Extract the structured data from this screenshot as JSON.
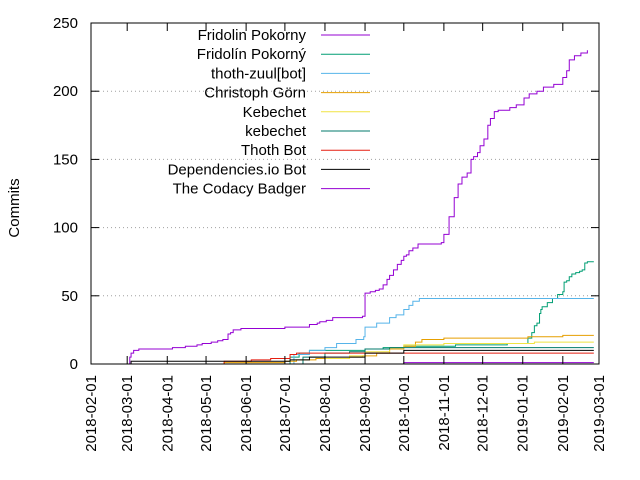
{
  "chart_data": {
    "type": "line",
    "ylabel": "Commits",
    "xlabel": "",
    "ylim": [
      0,
      250
    ],
    "xlim": [
      "2018-02-01",
      "2019-03-01"
    ],
    "yticks": [
      0,
      50,
      100,
      150,
      200,
      250
    ],
    "xticks": [
      "2018-02-01",
      "2018-03-01",
      "2018-04-01",
      "2018-05-01",
      "2018-06-01",
      "2018-07-01",
      "2018-08-01",
      "2018-09-01",
      "2018-10-01",
      "2018-11-01",
      "2018-12-01",
      "2019-01-01",
      "2019-02-01",
      "2019-03-01"
    ],
    "grid": "horizontal-dotted",
    "legend_position": "top-left",
    "step": true,
    "series": [
      {
        "name": "Fridolin Pokorny",
        "color": "#9400d3",
        "points": [
          [
            "2018-03-03",
            0
          ],
          [
            "2018-03-03",
            5
          ],
          [
            "2018-03-04",
            8
          ],
          [
            "2018-03-06",
            10
          ],
          [
            "2018-03-10",
            11
          ],
          [
            "2018-03-20",
            11
          ],
          [
            "2018-04-05",
            12
          ],
          [
            "2018-04-15",
            13
          ],
          [
            "2018-04-24",
            14
          ],
          [
            "2018-04-28",
            15
          ],
          [
            "2018-05-05",
            16
          ],
          [
            "2018-05-10",
            17
          ],
          [
            "2018-05-14",
            18
          ],
          [
            "2018-05-18",
            22
          ],
          [
            "2018-05-20",
            23
          ],
          [
            "2018-05-22",
            25
          ],
          [
            "2018-05-28",
            26
          ],
          [
            "2018-06-15",
            26
          ],
          [
            "2018-07-01",
            27
          ],
          [
            "2018-07-10",
            27
          ],
          [
            "2018-07-20",
            29
          ],
          [
            "2018-07-26",
            30
          ],
          [
            "2018-07-28",
            31
          ],
          [
            "2018-08-02",
            32
          ],
          [
            "2018-08-07",
            34
          ],
          [
            "2018-08-15",
            34
          ],
          [
            "2018-08-30",
            35
          ],
          [
            "2018-09-01",
            52
          ],
          [
            "2018-09-05",
            53
          ],
          [
            "2018-09-09",
            54
          ],
          [
            "2018-09-12",
            55
          ],
          [
            "2018-09-15",
            58
          ],
          [
            "2018-09-18",
            62
          ],
          [
            "2018-09-20",
            65
          ],
          [
            "2018-09-23",
            69
          ],
          [
            "2018-09-26",
            73
          ],
          [
            "2018-09-29",
            76
          ],
          [
            "2018-10-01",
            79
          ],
          [
            "2018-10-03",
            80
          ],
          [
            "2018-10-05",
            83
          ],
          [
            "2018-10-08",
            85
          ],
          [
            "2018-10-12",
            88
          ],
          [
            "2018-10-20",
            88
          ],
          [
            "2018-10-30",
            89
          ],
          [
            "2018-11-01",
            95
          ],
          [
            "2018-11-05",
            108
          ],
          [
            "2018-11-09",
            122
          ],
          [
            "2018-11-12",
            132
          ],
          [
            "2018-11-15",
            137
          ],
          [
            "2018-11-19",
            140
          ],
          [
            "2018-11-22",
            150
          ],
          [
            "2018-11-24",
            152
          ],
          [
            "2018-11-27",
            155
          ],
          [
            "2018-11-29",
            160
          ],
          [
            "2018-12-02",
            165
          ],
          [
            "2018-12-05",
            175
          ],
          [
            "2018-12-07",
            180
          ],
          [
            "2018-12-10",
            185
          ],
          [
            "2018-12-13",
            186
          ],
          [
            "2018-12-22",
            188
          ],
          [
            "2018-12-27",
            190
          ],
          [
            "2019-01-02",
            195
          ],
          [
            "2019-01-06",
            198
          ],
          [
            "2019-01-12",
            200
          ],
          [
            "2019-01-17",
            203
          ],
          [
            "2019-01-25",
            205
          ],
          [
            "2019-02-01",
            210
          ],
          [
            "2019-02-04",
            215
          ],
          [
            "2019-02-06",
            223
          ],
          [
            "2019-02-10",
            226
          ],
          [
            "2019-02-15",
            228
          ],
          [
            "2019-02-20",
            230
          ]
        ]
      },
      {
        "name": "Fridolín Pokorný",
        "color": "#009e73",
        "points": [
          [
            "2018-07-01",
            0
          ],
          [
            "2018-07-05",
            5
          ],
          [
            "2018-07-12",
            8
          ],
          [
            "2018-07-20",
            10
          ],
          [
            "2018-08-20",
            10
          ],
          [
            "2018-09-01",
            11
          ],
          [
            "2018-09-15",
            12
          ],
          [
            "2018-10-01",
            13
          ],
          [
            "2018-10-30",
            13
          ],
          [
            "2018-11-10",
            14
          ],
          [
            "2018-12-01",
            14
          ],
          [
            "2018-12-20",
            15
          ],
          [
            "2019-01-03",
            15
          ],
          [
            "2019-01-05",
            19
          ],
          [
            "2019-01-08",
            23
          ],
          [
            "2019-01-10",
            28
          ],
          [
            "2019-01-12",
            30
          ],
          [
            "2019-01-14",
            37
          ],
          [
            "2019-01-15",
            40
          ],
          [
            "2019-01-16",
            42
          ],
          [
            "2019-01-20",
            45
          ],
          [
            "2019-01-24",
            48
          ],
          [
            "2019-01-28",
            51
          ],
          [
            "2019-02-01",
            53
          ],
          [
            "2019-02-02",
            60
          ],
          [
            "2019-02-04",
            61
          ],
          [
            "2019-02-06",
            64
          ],
          [
            "2019-02-08",
            66
          ],
          [
            "2019-02-11",
            67
          ],
          [
            "2019-02-14",
            68
          ],
          [
            "2019-02-16",
            69
          ],
          [
            "2019-02-18",
            74
          ],
          [
            "2019-02-20",
            75
          ],
          [
            "2019-02-25",
            75
          ]
        ]
      },
      {
        "name": "thoth-zuul[bot]",
        "color": "#56b4e9",
        "points": [
          [
            "2018-07-01",
            0
          ],
          [
            "2018-07-08",
            7
          ],
          [
            "2018-07-20",
            10
          ],
          [
            "2018-08-01",
            12
          ],
          [
            "2018-08-10",
            15
          ],
          [
            "2018-08-25",
            18
          ],
          [
            "2018-08-31",
            20
          ],
          [
            "2018-09-01",
            27
          ],
          [
            "2018-09-10",
            30
          ],
          [
            "2018-09-20",
            34
          ],
          [
            "2018-09-25",
            36
          ],
          [
            "2018-10-01",
            40
          ],
          [
            "2018-10-05",
            43
          ],
          [
            "2018-10-08",
            46
          ],
          [
            "2018-10-13",
            48
          ],
          [
            "2019-02-25",
            48
          ]
        ]
      },
      {
        "name": "Christoph Görn",
        "color": "#e69f00",
        "points": [
          [
            "2018-04-25",
            0
          ],
          [
            "2018-05-15",
            1
          ],
          [
            "2018-07-01",
            2
          ],
          [
            "2018-07-10",
            3
          ],
          [
            "2018-07-25",
            4
          ],
          [
            "2018-08-20",
            5
          ],
          [
            "2018-08-30",
            6
          ],
          [
            "2018-09-10",
            8
          ],
          [
            "2018-09-20",
            11
          ],
          [
            "2018-10-01",
            13
          ],
          [
            "2018-10-10",
            16
          ],
          [
            "2018-10-15",
            18
          ],
          [
            "2018-11-01",
            19
          ],
          [
            "2019-01-05",
            20
          ],
          [
            "2019-02-01",
            21
          ],
          [
            "2019-02-25",
            21
          ]
        ]
      },
      {
        "name": "Kebechet",
        "color": "#f0e442",
        "points": [
          [
            "2018-07-01",
            0
          ],
          [
            "2018-08-01",
            4
          ],
          [
            "2018-08-20",
            6
          ],
          [
            "2018-09-01",
            9
          ],
          [
            "2018-09-20",
            12
          ],
          [
            "2018-10-01",
            14
          ],
          [
            "2018-11-01",
            15
          ],
          [
            "2018-12-01",
            15
          ],
          [
            "2019-01-10",
            16
          ],
          [
            "2019-02-25",
            16
          ]
        ]
      },
      {
        "name": "kebechet",
        "color": "#00796b",
        "points": [
          [
            "2018-07-01",
            0
          ],
          [
            "2018-07-15",
            5
          ],
          [
            "2018-08-01",
            8
          ],
          [
            "2018-08-20",
            9
          ],
          [
            "2018-09-01",
            11
          ],
          [
            "2018-09-20",
            12
          ],
          [
            "2019-02-25",
            12
          ]
        ]
      },
      {
        "name": "Thoth Bot",
        "color": "#e51e10",
        "points": [
          [
            "2018-04-25",
            0
          ],
          [
            "2018-05-15",
            2
          ],
          [
            "2018-06-05",
            3
          ],
          [
            "2018-06-20",
            4
          ],
          [
            "2018-07-05",
            7
          ],
          [
            "2018-07-10",
            8
          ],
          [
            "2019-02-25",
            8
          ]
        ]
      },
      {
        "name": "Dependencies.io Bot",
        "color": "#000000",
        "points": [
          [
            "2018-03-03",
            0
          ],
          [
            "2018-03-04",
            2
          ],
          [
            "2018-05-20",
            2
          ],
          [
            "2018-07-05",
            3
          ],
          [
            "2018-07-20",
            5
          ],
          [
            "2018-09-01",
            8
          ],
          [
            "2018-10-01",
            10
          ],
          [
            "2018-11-01",
            10
          ],
          [
            "2019-02-25",
            10
          ]
        ]
      },
      {
        "name": "The Codacy Badger",
        "color": "#9400d3",
        "points": [
          [
            "2018-09-30",
            0
          ],
          [
            "2018-10-01",
            1
          ],
          [
            "2019-02-25",
            1
          ]
        ]
      }
    ]
  }
}
